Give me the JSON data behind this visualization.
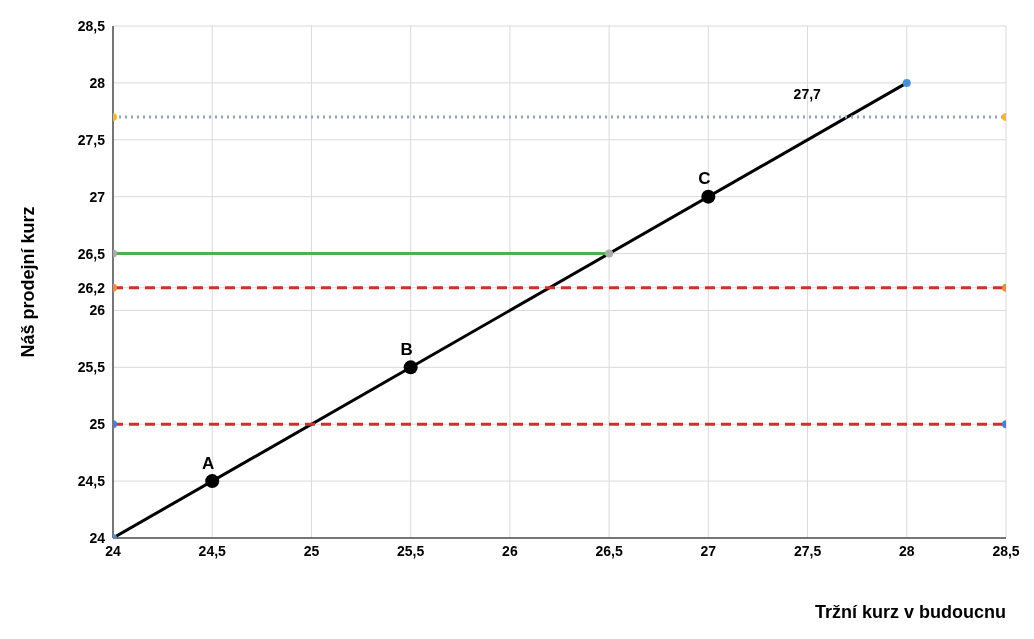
{
  "chart_data": {
    "type": "line",
    "xlabel": "Tržní kurz v budoucnu",
    "ylabel": "Náš prodejní kurz",
    "xlim": [
      24,
      28.5
    ],
    "xticks": [
      24,
      {
        "value": 24.5,
        "label": "24,5"
      },
      25,
      {
        "value": 25.5,
        "label": "25,5"
      },
      26,
      {
        "value": 26.5,
        "label": "26,5"
      },
      27,
      {
        "value": 27.5,
        "label": "27,5"
      },
      28,
      {
        "value": 28.5,
        "label": "28,5"
      }
    ],
    "ylim": [
      24,
      28.5
    ],
    "yticks": [
      24,
      {
        "value": 24.5,
        "label": "24,5"
      },
      25,
      {
        "value": 25.5,
        "label": "25,5"
      },
      26,
      {
        "value": 26.2,
        "label": "26,2"
      },
      {
        "value": 26.5,
        "label": "26,5"
      },
      27,
      {
        "value": 27.5,
        "label": "27,5"
      },
      28,
      {
        "value": 28.5,
        "label": "28,5"
      }
    ],
    "grid": true,
    "marker": "circle",
    "series": [
      {
        "x": [
          24,
          28
        ],
        "values": [
          24,
          28
        ],
        "color": "#000000",
        "colors": [
          "#4a90d9",
          "#4a90d9"
        ],
        "line_style": "solid"
      },
      {
        "x": [
          24,
          28.5
        ],
        "values": [
          27.7,
          27.7
        ],
        "color": "#8fa3bf",
        "colors": [
          "#f5b731",
          "#f5b731"
        ],
        "line_style": "dotted"
      },
      {
        "x": [
          24,
          26.5
        ],
        "values": [
          26.5,
          26.5
        ],
        "color": "#4caf50",
        "colors": [
          "#aaaaaa",
          "#aaaaaa"
        ],
        "line_style": "solid"
      },
      {
        "x": [
          24,
          28.5
        ],
        "values": [
          26.2,
          26.2
        ],
        "color": "#d0302b",
        "colors": [
          "#f08a3c",
          "#f08a3c"
        ],
        "line_style": "dashed"
      },
      {
        "x": [
          24,
          28.5
        ],
        "values": [
          25,
          25
        ],
        "color": "#d0302b",
        "colors": [
          "#4a7fd9",
          "#4a7fd9"
        ],
        "line_style": "dashed"
      },
      {
        "type": "scatter",
        "x": [
          24.5,
          25.5,
          27
        ],
        "values": [
          24.5,
          25.5,
          27
        ],
        "color": "#000000",
        "value_labels": [
          "A",
          "B",
          "C"
        ]
      }
    ],
    "annotations": [
      {
        "text": "27,7",
        "x": 27.7,
        "y": 27.7
      }
    ]
  }
}
